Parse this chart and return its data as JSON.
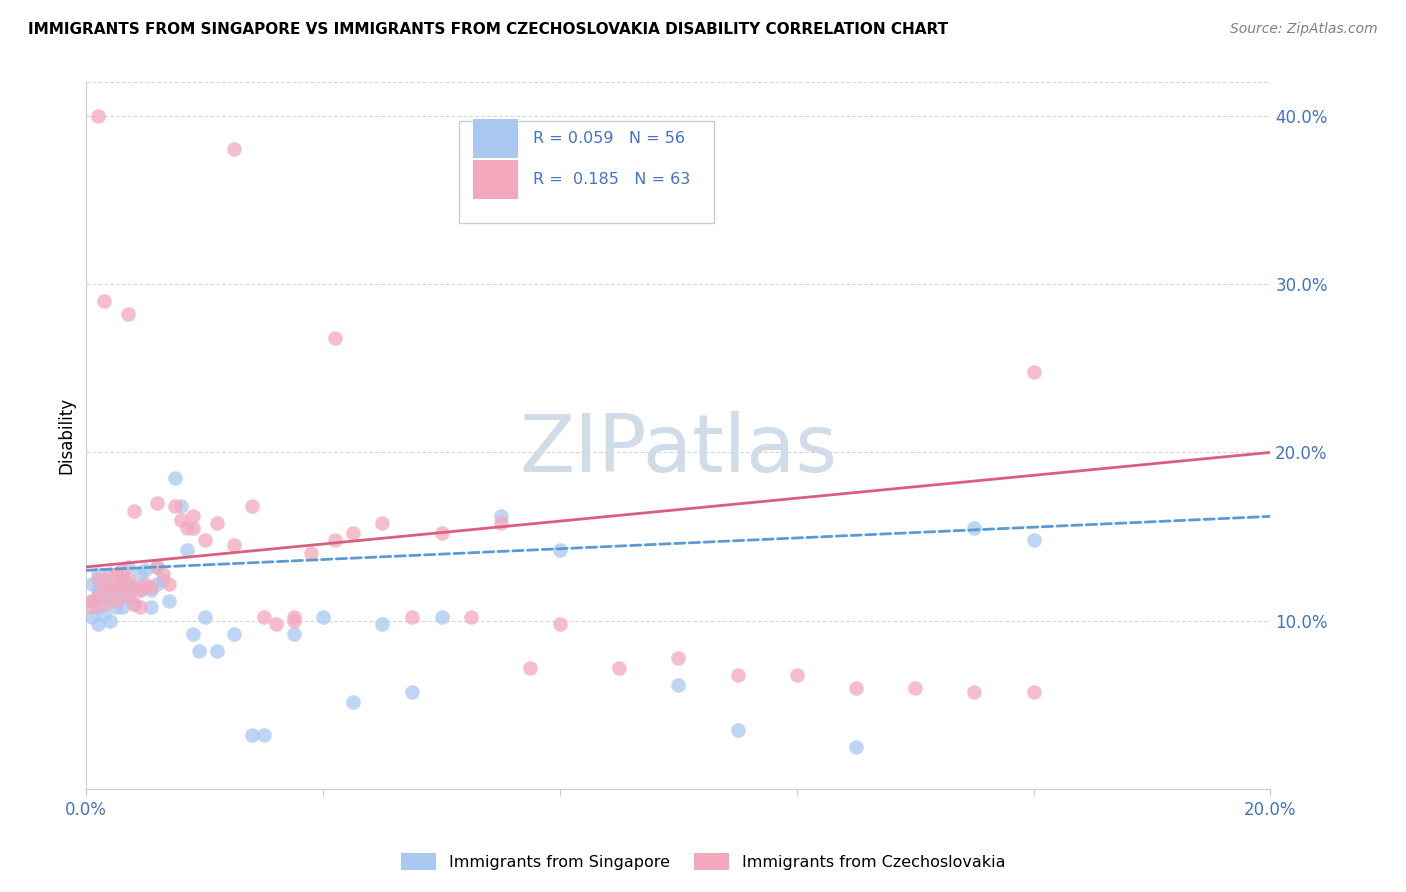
{
  "title": "IMMIGRANTS FROM SINGAPORE VS IMMIGRANTS FROM CZECHOSLOVAKIA DISABILITY CORRELATION CHART",
  "source": "Source: ZipAtlas.com",
  "ylabel": "Disability",
  "x_min": 0.0,
  "x_max": 0.2,
  "y_min": 0.0,
  "y_max": 0.42,
  "singapore_color": "#a8c8f0",
  "czechoslovakia_color": "#f4a8bc",
  "singapore_R": 0.059,
  "singapore_N": 56,
  "czechoslovakia_R": 0.185,
  "czechoslovakia_N": 63,
  "singapore_line_color": "#5b9bd5",
  "czechoslovakia_line_color": "#d95f7f",
  "singapore_line_style": "--",
  "czechoslovakia_line_style": "-",
  "watermark_text": "ZIPatlas",
  "watermark_color": "#d0dce8",
  "grid_color": "#d8d8d8",
  "tick_color": "#4472c4",
  "title_color": "#000000",
  "source_color": "#808080",
  "singapore_x": [
    0.001,
    0.001,
    0.001,
    0.002,
    0.002,
    0.002,
    0.002,
    0.003,
    0.003,
    0.003,
    0.004,
    0.004,
    0.004,
    0.005,
    0.005,
    0.006,
    0.006,
    0.006,
    0.007,
    0.007,
    0.007,
    0.008,
    0.008,
    0.009,
    0.009,
    0.01,
    0.01,
    0.011,
    0.011,
    0.012,
    0.012,
    0.013,
    0.014,
    0.015,
    0.016,
    0.017,
    0.018,
    0.019,
    0.02,
    0.022,
    0.025,
    0.028,
    0.03,
    0.035,
    0.04,
    0.045,
    0.05,
    0.055,
    0.06,
    0.07,
    0.08,
    0.1,
    0.11,
    0.13,
    0.15,
    0.16
  ],
  "singapore_y": [
    0.122,
    0.112,
    0.102,
    0.128,
    0.118,
    0.108,
    0.098,
    0.124,
    0.114,
    0.104,
    0.12,
    0.112,
    0.1,
    0.118,
    0.108,
    0.126,
    0.116,
    0.108,
    0.132,
    0.122,
    0.114,
    0.12,
    0.11,
    0.128,
    0.118,
    0.13,
    0.12,
    0.118,
    0.108,
    0.132,
    0.122,
    0.124,
    0.112,
    0.185,
    0.168,
    0.142,
    0.092,
    0.082,
    0.102,
    0.082,
    0.092,
    0.032,
    0.032,
    0.092,
    0.102,
    0.052,
    0.098,
    0.058,
    0.102,
    0.162,
    0.142,
    0.062,
    0.035,
    0.025,
    0.155,
    0.148
  ],
  "czechoslovakia_x": [
    0.001,
    0.001,
    0.002,
    0.002,
    0.003,
    0.003,
    0.004,
    0.004,
    0.005,
    0.005,
    0.006,
    0.006,
    0.007,
    0.007,
    0.008,
    0.008,
    0.009,
    0.009,
    0.01,
    0.011,
    0.012,
    0.013,
    0.014,
    0.015,
    0.016,
    0.017,
    0.018,
    0.02,
    0.022,
    0.025,
    0.028,
    0.03,
    0.032,
    0.035,
    0.038,
    0.042,
    0.045,
    0.05,
    0.055,
    0.06,
    0.065,
    0.07,
    0.075,
    0.08,
    0.09,
    0.1,
    0.11,
    0.12,
    0.13,
    0.14,
    0.15,
    0.16,
    0.003,
    0.005,
    0.008,
    0.012,
    0.018,
    0.025,
    0.035,
    0.042,
    0.16,
    0.002,
    0.007
  ],
  "czechoslovakia_y": [
    0.112,
    0.108,
    0.125,
    0.115,
    0.12,
    0.11,
    0.128,
    0.118,
    0.122,
    0.112,
    0.13,
    0.12,
    0.125,
    0.115,
    0.12,
    0.11,
    0.118,
    0.108,
    0.122,
    0.12,
    0.132,
    0.128,
    0.122,
    0.168,
    0.16,
    0.155,
    0.162,
    0.148,
    0.158,
    0.145,
    0.168,
    0.102,
    0.098,
    0.102,
    0.14,
    0.148,
    0.152,
    0.158,
    0.102,
    0.152,
    0.102,
    0.158,
    0.072,
    0.098,
    0.072,
    0.078,
    0.068,
    0.068,
    0.06,
    0.06,
    0.058,
    0.058,
    0.29,
    0.128,
    0.165,
    0.17,
    0.155,
    0.38,
    0.1,
    0.268,
    0.248,
    0.4,
    0.282
  ]
}
